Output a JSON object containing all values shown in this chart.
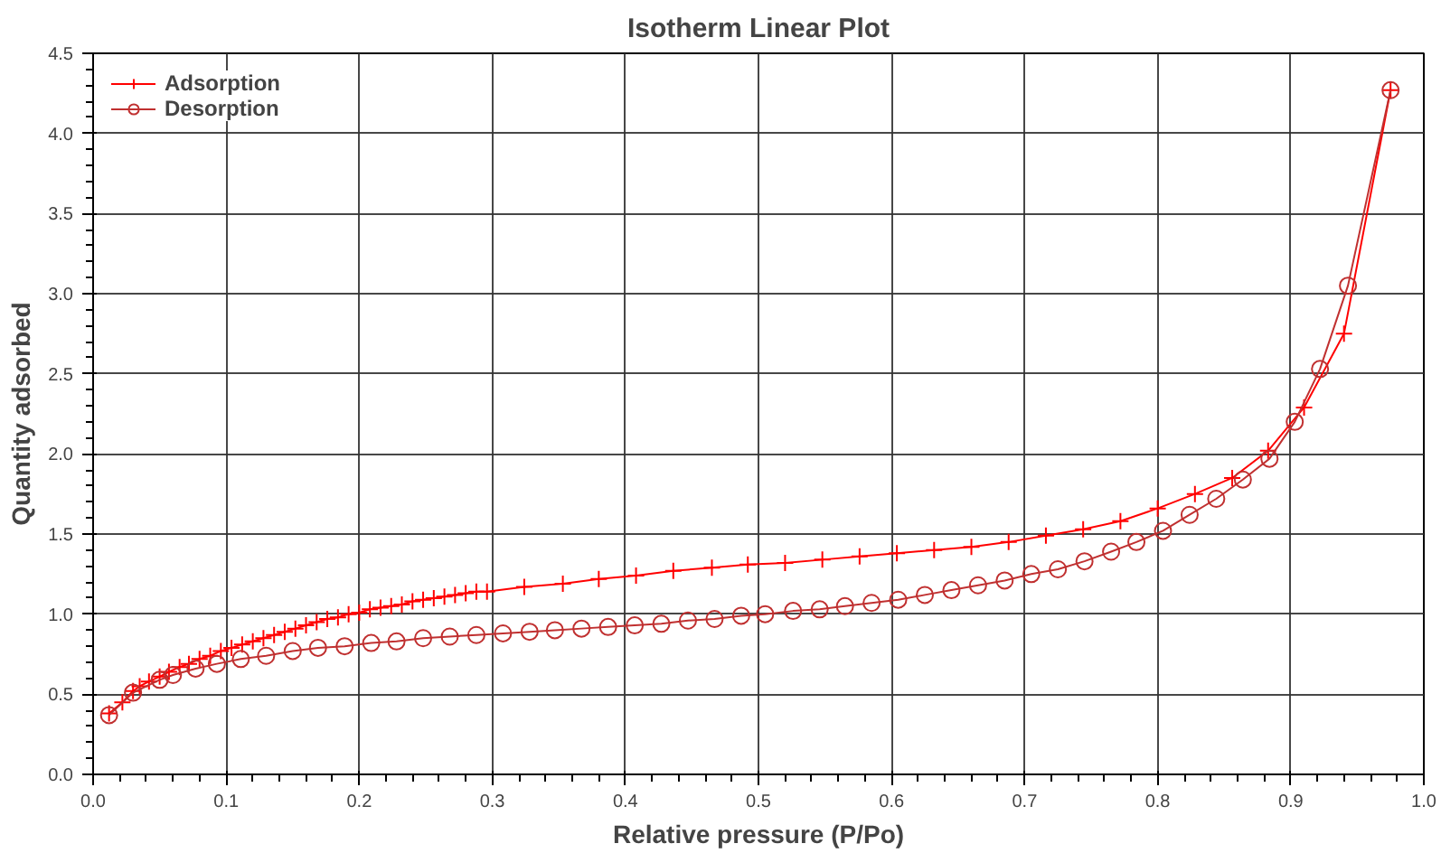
{
  "chart_data": {
    "type": "line",
    "title": "Isotherm Linear Plot",
    "xlabel": "Relative pressure (P/Po)",
    "ylabel": "Quantity adsorbed",
    "xlim": [
      0,
      1
    ],
    "ylim": [
      0,
      4.5
    ],
    "xticks": [
      {
        "value": 0,
        "label": "0.0"
      },
      0.1,
      0.2,
      0.3,
      0.4,
      0.5,
      0.6,
      0.7,
      0.8,
      0.9,
      {
        "value": 1,
        "label": "1.0"
      }
    ],
    "yticks": [
      {
        "value": 0,
        "label": "0.0"
      },
      0.5,
      {
        "value": 1,
        "label": "1.0"
      },
      1.5,
      {
        "value": 2,
        "label": "2.0"
      },
      2.5,
      {
        "value": 3,
        "label": "3.0"
      },
      3.5,
      {
        "value": 4,
        "label": "4.0"
      },
      4.5
    ],
    "grid": true,
    "legend": "top left",
    "line_style": "solid",
    "series": [
      {
        "name": "Adsorption",
        "color": "#ff0000",
        "marker": "cross",
        "x": [
          0.012,
          0.022,
          0.03,
          0.035,
          0.042,
          0.05,
          0.057,
          0.065,
          0.072,
          0.08,
          0.088,
          0.096,
          0.104,
          0.112,
          0.12,
          0.128,
          0.136,
          0.144,
          0.152,
          0.16,
          0.168,
          0.176,
          0.184,
          0.192,
          0.2,
          0.208,
          0.216,
          0.224,
          0.232,
          0.24,
          0.248,
          0.256,
          0.264,
          0.272,
          0.28,
          0.288,
          0.296,
          0.324,
          0.353,
          0.38,
          0.408,
          0.436,
          0.465,
          0.492,
          0.52,
          0.548,
          0.576,
          0.604,
          0.632,
          0.66,
          0.688,
          0.716,
          0.744,
          0.772,
          0.8,
          0.828,
          0.856,
          0.883,
          0.91,
          0.94,
          0.975
        ],
        "values": [
          0.38,
          0.45,
          0.52,
          0.55,
          0.58,
          0.61,
          0.64,
          0.67,
          0.69,
          0.72,
          0.74,
          0.77,
          0.79,
          0.81,
          0.83,
          0.85,
          0.87,
          0.89,
          0.91,
          0.93,
          0.95,
          0.97,
          0.98,
          1.0,
          1.01,
          1.03,
          1.04,
          1.05,
          1.06,
          1.08,
          1.09,
          1.1,
          1.11,
          1.12,
          1.13,
          1.14,
          1.14,
          1.17,
          1.19,
          1.22,
          1.24,
          1.27,
          1.29,
          1.31,
          1.32,
          1.34,
          1.36,
          1.38,
          1.4,
          1.42,
          1.45,
          1.49,
          1.53,
          1.58,
          1.66,
          1.75,
          1.85,
          2.02,
          2.29,
          2.75,
          4.27
        ]
      },
      {
        "name": "Desorption",
        "color": "#c03030",
        "marker": "circle",
        "x": [
          0.012,
          0.03,
          0.05,
          0.06,
          0.077,
          0.093,
          0.111,
          0.13,
          0.15,
          0.169,
          0.189,
          0.209,
          0.228,
          0.248,
          0.268,
          0.288,
          0.308,
          0.328,
          0.347,
          0.367,
          0.387,
          0.407,
          0.427,
          0.447,
          0.467,
          0.487,
          0.505,
          0.526,
          0.546,
          0.565,
          0.585,
          0.605,
          0.625,
          0.645,
          0.665,
          0.685,
          0.705,
          0.725,
          0.745,
          0.765,
          0.784,
          0.804,
          0.824,
          0.844,
          0.864,
          0.884,
          0.903,
          0.922,
          0.943,
          0.975
        ],
        "values": [
          0.37,
          0.51,
          0.59,
          0.62,
          0.66,
          0.69,
          0.72,
          0.74,
          0.77,
          0.79,
          0.8,
          0.82,
          0.83,
          0.85,
          0.86,
          0.87,
          0.88,
          0.89,
          0.9,
          0.91,
          0.92,
          0.93,
          0.94,
          0.96,
          0.97,
          0.99,
          1.0,
          1.02,
          1.03,
          1.05,
          1.07,
          1.09,
          1.12,
          1.15,
          1.18,
          1.21,
          1.25,
          1.28,
          1.33,
          1.39,
          1.45,
          1.52,
          1.62,
          1.72,
          1.84,
          1.97,
          2.2,
          2.53,
          3.05,
          4.27
        ]
      }
    ]
  }
}
